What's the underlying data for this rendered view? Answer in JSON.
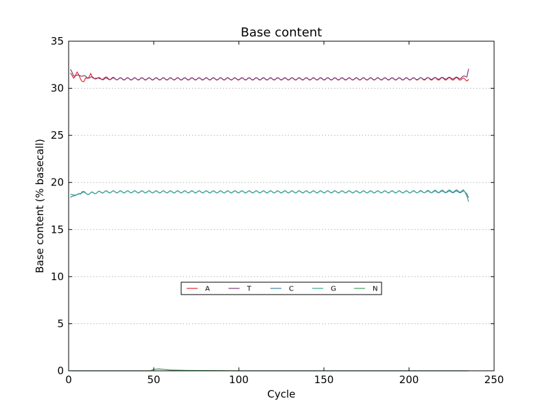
{
  "chart_data": {
    "type": "line",
    "title": "Base content",
    "xlabel": "Cycle",
    "ylabel": "Base content (% basecall)",
    "xlim": [
      0,
      250
    ],
    "ylim": [
      0,
      35
    ],
    "xticks": [
      0,
      50,
      100,
      150,
      200,
      250
    ],
    "yticks": [
      0,
      5,
      10,
      15,
      20,
      25,
      30,
      35
    ],
    "grid": "horizontal dotted",
    "legend_position": "center, horizontal",
    "series": [
      {
        "name": "A",
        "color": "#e8262a",
        "points": [
          [
            1,
            31.5
          ],
          [
            3,
            31.2
          ],
          [
            5,
            31.6
          ],
          [
            7,
            31.1
          ],
          [
            8,
            30.8
          ],
          [
            9,
            30.6
          ],
          [
            10,
            31.0
          ],
          [
            12,
            31.3
          ],
          [
            13,
            31.5
          ],
          [
            14,
            31.0
          ],
          [
            16,
            31.2
          ],
          [
            18,
            30.9
          ],
          [
            20,
            31.1
          ],
          [
            30,
            31.0
          ],
          [
            50,
            31.0
          ],
          [
            100,
            31.0
          ],
          [
            150,
            31.0
          ],
          [
            200,
            31.0
          ],
          [
            230,
            31.0
          ],
          [
            234,
            30.9
          ],
          [
            235,
            31.0
          ]
        ]
      },
      {
        "name": "T",
        "color": "#7a3d7a",
        "points": [
          [
            1,
            31.9
          ],
          [
            2,
            31.7
          ],
          [
            3,
            31.4
          ],
          [
            5,
            31.3
          ],
          [
            7,
            31.4
          ],
          [
            10,
            31.2
          ],
          [
            15,
            31.1
          ],
          [
            20,
            31.0
          ],
          [
            50,
            31.0
          ],
          [
            100,
            31.0
          ],
          [
            150,
            31.0
          ],
          [
            200,
            31.0
          ],
          [
            230,
            31.1
          ],
          [
            234,
            31.3
          ],
          [
            235,
            32.1
          ]
        ]
      },
      {
        "name": "C",
        "color": "#3b7fa8",
        "points": [
          [
            1,
            18.3
          ],
          [
            3,
            18.7
          ],
          [
            5,
            18.6
          ],
          [
            8,
            19.0
          ],
          [
            10,
            18.8
          ],
          [
            15,
            18.9
          ],
          [
            20,
            19.0
          ],
          [
            50,
            19.0
          ],
          [
            100,
            19.0
          ],
          [
            150,
            19.0
          ],
          [
            200,
            19.0
          ],
          [
            232,
            19.0
          ],
          [
            234,
            18.9
          ],
          [
            235,
            18.4
          ]
        ]
      },
      {
        "name": "G",
        "color": "#3aa394",
        "points": [
          [
            1,
            18.6
          ],
          [
            3,
            18.8
          ],
          [
            5,
            18.6
          ],
          [
            8,
            19.1
          ],
          [
            10,
            18.8
          ],
          [
            15,
            18.9
          ],
          [
            20,
            19.0
          ],
          [
            50,
            19.0
          ],
          [
            100,
            19.0
          ],
          [
            150,
            19.0
          ],
          [
            200,
            19.0
          ],
          [
            232,
            19.1
          ],
          [
            234,
            18.7
          ],
          [
            235,
            18.0
          ]
        ]
      },
      {
        "name": "N",
        "color": "#3f9e5a",
        "points": [
          [
            1,
            0.0
          ],
          [
            48,
            0.0
          ],
          [
            50,
            0.15
          ],
          [
            53,
            0.2
          ],
          [
            56,
            0.15
          ],
          [
            60,
            0.08
          ],
          [
            70,
            0.04
          ],
          [
            90,
            0.02
          ],
          [
            100,
            0.0
          ],
          [
            235,
            0.0
          ]
        ]
      }
    ]
  }
}
